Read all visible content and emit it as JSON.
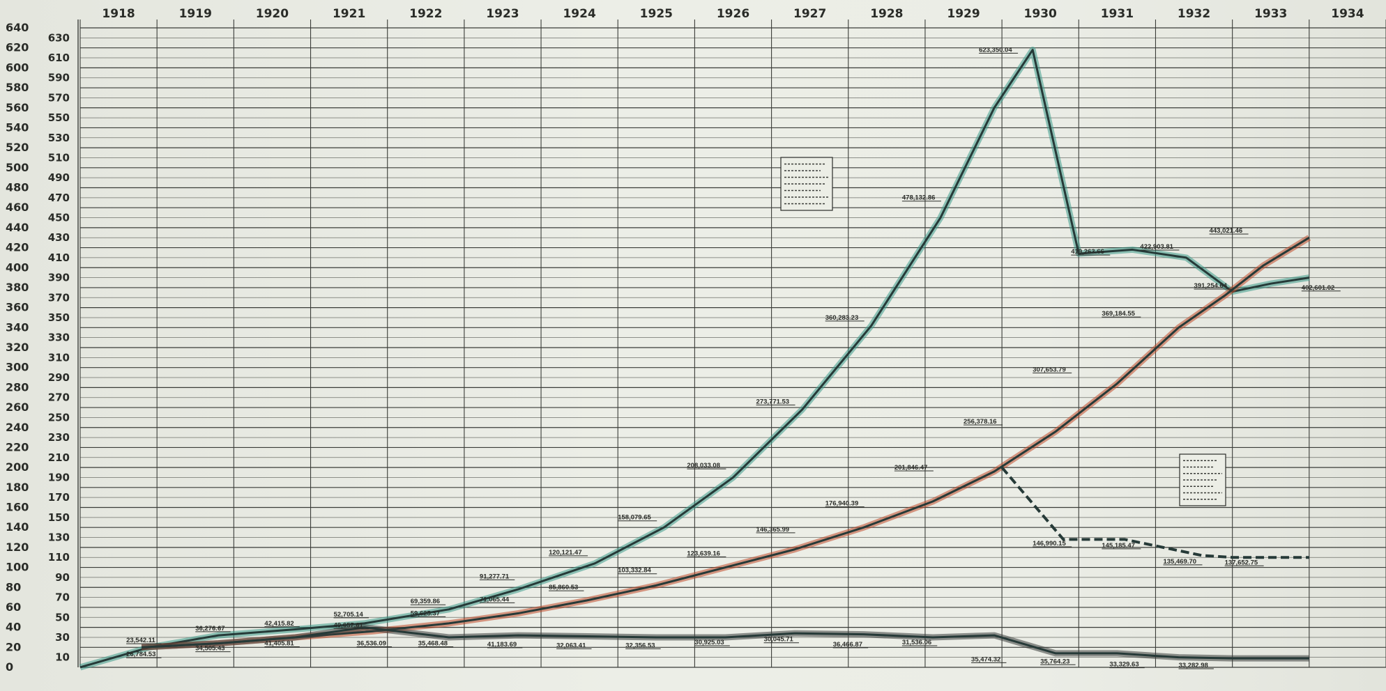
{
  "chart_data": {
    "type": "line",
    "x": [
      "1918",
      "1919",
      "1920",
      "1921",
      "1922",
      "1923",
      "1924",
      "1925",
      "1926",
      "1927",
      "1928",
      "1929",
      "1930",
      "1931",
      "1932",
      "1933",
      "1934"
    ],
    "ylim": [
      0,
      640
    ],
    "y_ticks_left": [
      "0",
      "20",
      "40",
      "60",
      "80",
      "100",
      "120",
      "140",
      "160",
      "180",
      "200",
      "220",
      "240",
      "260",
      "280",
      "300",
      "320",
      "340",
      "360",
      "380",
      "400",
      "420",
      "440",
      "460",
      "480",
      "500",
      "520",
      "540",
      "560",
      "580",
      "600",
      "620",
      "640"
    ],
    "y_ticks_right": [
      "10",
      "30",
      "50",
      "70",
      "90",
      "110",
      "130",
      "150",
      "170",
      "190",
      "210",
      "230",
      "250",
      "270",
      "290",
      "310",
      "330",
      "350",
      "370",
      "390",
      "410",
      "430",
      "450",
      "470",
      "490",
      "510",
      "530",
      "550",
      "570",
      "590",
      "610",
      "630"
    ],
    "grid": true,
    "series": [
      {
        "color": "#3c9a8a",
        "points": [
          [
            1918.0,
            0
          ],
          [
            1918.9,
            20
          ],
          [
            1919.8,
            32
          ],
          [
            1920.8,
            38
          ],
          [
            1921.7,
            44
          ],
          [
            1922.8,
            58
          ],
          [
            1923.7,
            78
          ],
          [
            1924.7,
            104
          ],
          [
            1925.6,
            140
          ],
          [
            1926.5,
            190
          ],
          [
            1927.4,
            258
          ],
          [
            1928.3,
            342
          ],
          [
            1929.2,
            450
          ],
          [
            1929.9,
            560
          ],
          [
            1930.4,
            618
          ],
          [
            1931.0,
            414
          ],
          [
            1931.7,
            418
          ],
          [
            1932.4,
            410
          ],
          [
            1933.0,
            376
          ],
          [
            1933.5,
            384
          ],
          [
            1934.0,
            390
          ]
        ],
        "labels": [
          {
            "x": 1918.6,
            "y": 25,
            "text": "23,542.11"
          },
          {
            "x": 1919.5,
            "y": 37,
            "text": "36,276.67"
          },
          {
            "x": 1920.4,
            "y": 42,
            "text": "42,415.82"
          },
          {
            "x": 1921.3,
            "y": 51,
            "text": "52,705.14"
          },
          {
            "x": 1922.3,
            "y": 64,
            "text": "69,359.86"
          },
          {
            "x": 1923.2,
            "y": 89,
            "text": "91,277.71"
          },
          {
            "x": 1924.1,
            "y": 113,
            "text": "120,121.47"
          },
          {
            "x": 1925.0,
            "y": 148,
            "text": "158,079.65"
          },
          {
            "x": 1925.9,
            "y": 200,
            "text": "208,033.08"
          },
          {
            "x": 1926.8,
            "y": 264,
            "text": "273,771.53"
          },
          {
            "x": 1927.7,
            "y": 348,
            "text": "360,283.23"
          },
          {
            "x": 1928.7,
            "y": 468,
            "text": "478,132.86"
          },
          {
            "x": 1929.7,
            "y": 616,
            "text": "623,350.04"
          },
          {
            "x": 1930.9,
            "y": 414,
            "text": "419,263.66"
          },
          {
            "x": 1931.8,
            "y": 419,
            "text": "422,903.81"
          },
          {
            "x": 1932.5,
            "y": 380,
            "text": "391,254.64"
          },
          {
            "x": 1933.9,
            "y": 378,
            "text": "402,601.02"
          }
        ]
      },
      {
        "color": "#c04a2a",
        "points": [
          [
            1918.8,
            20
          ],
          [
            1919.8,
            24
          ],
          [
            1920.8,
            30
          ],
          [
            1921.8,
            36
          ],
          [
            1922.8,
            44
          ],
          [
            1923.7,
            54
          ],
          [
            1924.6,
            67
          ],
          [
            1925.5,
            82
          ],
          [
            1926.4,
            100
          ],
          [
            1927.3,
            118
          ],
          [
            1928.2,
            140
          ],
          [
            1929.1,
            166
          ],
          [
            1929.9,
            196
          ],
          [
            1930.7,
            236
          ],
          [
            1931.5,
            284
          ],
          [
            1932.3,
            340
          ],
          [
            1932.9,
            372
          ],
          [
            1933.4,
            402
          ],
          [
            1934.0,
            430
          ]
        ],
        "labels": [
          {
            "x": 1918.6,
            "y": 11,
            "text": "26,784.53"
          },
          {
            "x": 1919.5,
            "y": 17,
            "text": "34,505.43"
          },
          {
            "x": 1920.4,
            "y": 22,
            "text": "41,405.81"
          },
          {
            "x": 1921.3,
            "y": 40,
            "text": "49,657.61"
          },
          {
            "x": 1922.3,
            "y": 52,
            "text": "59,625.37"
          },
          {
            "x": 1923.2,
            "y": 66,
            "text": "71,065.44"
          },
          {
            "x": 1924.1,
            "y": 78,
            "text": "85,860.53"
          },
          {
            "x": 1925.0,
            "y": 95,
            "text": "103,332.84"
          },
          {
            "x": 1925.9,
            "y": 112,
            "text": "123,639.16"
          },
          {
            "x": 1926.8,
            "y": 136,
            "text": "146,365.99"
          },
          {
            "x": 1927.7,
            "y": 162,
            "text": "176,940.39"
          },
          {
            "x": 1928.6,
            "y": 198,
            "text": "201,846.47"
          },
          {
            "x": 1929.5,
            "y": 244,
            "text": "256,378.16"
          },
          {
            "x": 1930.4,
            "y": 296,
            "text": "307,653.79"
          },
          {
            "x": 1931.3,
            "y": 352,
            "text": "369,184.55"
          },
          {
            "x": 1932.7,
            "y": 435,
            "text": "443,021.46"
          }
        ]
      },
      {
        "color": "#2a2c28",
        "dashed": true,
        "points": [
          [
            1930.0,
            200
          ],
          [
            1930.8,
            128
          ],
          [
            1931.6,
            128
          ],
          [
            1932.6,
            112
          ],
          [
            1933.0,
            110
          ],
          [
            1934.0,
            110
          ]
        ],
        "labels": [
          {
            "x": 1930.4,
            "y": 122,
            "text": "146,990.15"
          },
          {
            "x": 1931.3,
            "y": 120,
            "text": "145,185.47"
          },
          {
            "x": 1932.1,
            "y": 104,
            "text": "135,469.70"
          },
          {
            "x": 1932.9,
            "y": 103,
            "text": "137,652.75"
          }
        ]
      },
      {
        "color": "#3a3e3c",
        "points": [
          [
            1918.8,
            20
          ],
          [
            1919.8,
            24
          ],
          [
            1920.8,
            30
          ],
          [
            1921.7,
            40
          ],
          [
            1922.8,
            30
          ],
          [
            1923.7,
            32
          ],
          [
            1924.6,
            31
          ],
          [
            1925.5,
            30
          ],
          [
            1926.4,
            30
          ],
          [
            1927.3,
            34
          ],
          [
            1928.2,
            33
          ],
          [
            1929.1,
            30
          ],
          [
            1929.9,
            32
          ],
          [
            1930.7,
            14
          ],
          [
            1931.5,
            14
          ],
          [
            1932.3,
            10
          ],
          [
            1933.0,
            9
          ],
          [
            1934.0,
            9
          ]
        ],
        "labels": [
          {
            "x": 1921.6,
            "y": 22,
            "text": "36,536.09"
          },
          {
            "x": 1922.4,
            "y": 22,
            "text": "35,468.48"
          },
          {
            "x": 1923.3,
            "y": 21,
            "text": "41,183.69"
          },
          {
            "x": 1924.2,
            "y": 20,
            "text": "32,063.41"
          },
          {
            "x": 1925.1,
            "y": 20,
            "text": "32,356.53"
          },
          {
            "x": 1926.0,
            "y": 23,
            "text": "30,925.03"
          },
          {
            "x": 1926.9,
            "y": 26,
            "text": "30,045.71"
          },
          {
            "x": 1927.8,
            "y": 21,
            "text": "36,466.87"
          },
          {
            "x": 1928.7,
            "y": 23,
            "text": "31,536.06"
          },
          {
            "x": 1929.6,
            "y": 6,
            "text": "35,474.32"
          },
          {
            "x": 1930.5,
            "y": 4,
            "text": "35,764.23"
          },
          {
            "x": 1931.4,
            "y": 1,
            "text": "33,329.63"
          },
          {
            "x": 1932.3,
            "y": 0,
            "text": "33,282.98"
          }
        ]
      }
    ]
  }
}
